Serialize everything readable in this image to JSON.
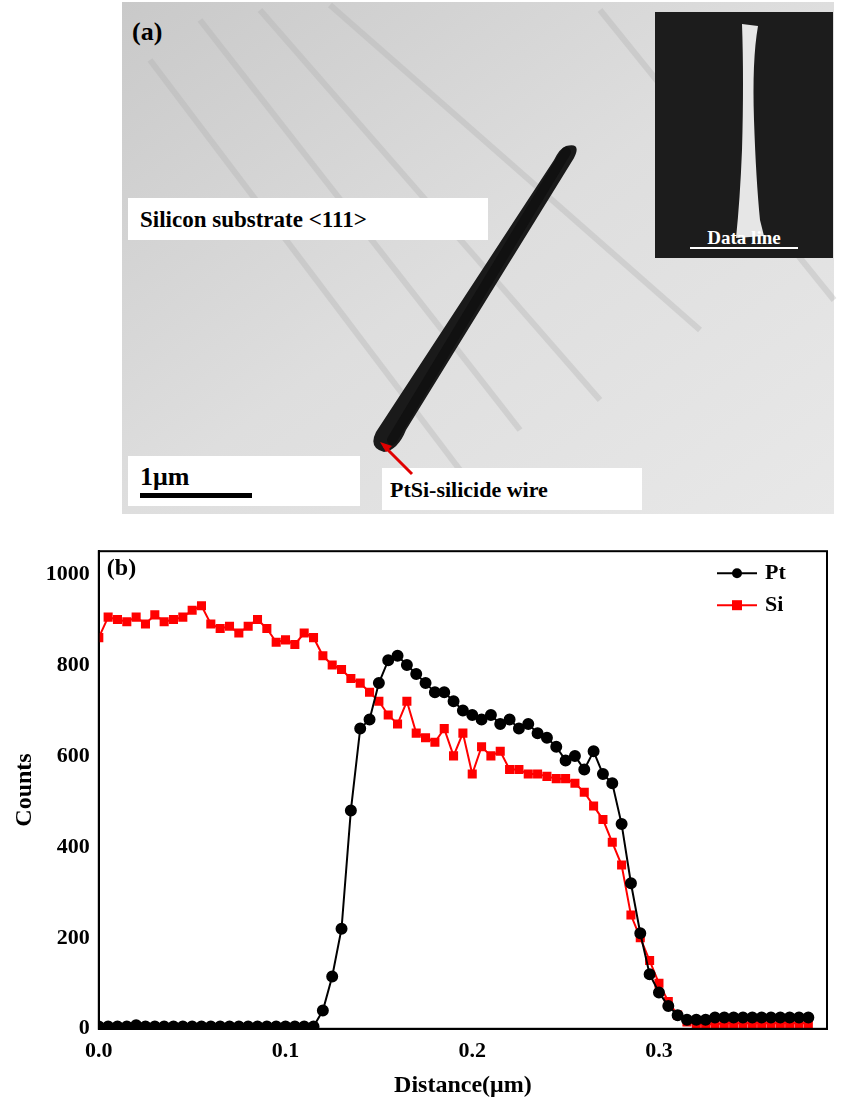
{
  "panel_a": {
    "label": "(a)",
    "substrate_label": "Silicon substrate <111>",
    "scale_bar": "1μm",
    "wire_label": "PtSi-silicide wire",
    "inset_label": "Data line"
  },
  "chart_data": {
    "type": "line",
    "panel_label": "(b)",
    "x_label": "Distance(μm)",
    "y_label": "Counts",
    "x": [
      0,
      0.005,
      0.01,
      0.015,
      0.02,
      0.025,
      0.03,
      0.035,
      0.04,
      0.045,
      0.05,
      0.055,
      0.06,
      0.065,
      0.07,
      0.075,
      0.08,
      0.085,
      0.09,
      0.095,
      0.1,
      0.105,
      0.11,
      0.115,
      0.12,
      0.125,
      0.13,
      0.135,
      0.14,
      0.145,
      0.15,
      0.155,
      0.16,
      0.165,
      0.17,
      0.175,
      0.18,
      0.185,
      0.19,
      0.195,
      0.2,
      0.205,
      0.21,
      0.215,
      0.22,
      0.225,
      0.23,
      0.235,
      0.24,
      0.245,
      0.25,
      0.255,
      0.26,
      0.265,
      0.27,
      0.275,
      0.28,
      0.285,
      0.29,
      0.295,
      0.3,
      0.305,
      0.31,
      0.315,
      0.32,
      0.325,
      0.33,
      0.335,
      0.34,
      0.345,
      0.35,
      0.355,
      0.36,
      0.365,
      0.37,
      0.375,
      0.38
    ],
    "series": [
      {
        "name": "Pt",
        "color": "#000000",
        "marker": "circle",
        "line_style": "solid",
        "values": [
          5,
          5,
          5,
          5,
          8,
          5,
          5,
          5,
          5,
          5,
          5,
          5,
          5,
          5,
          5,
          5,
          5,
          5,
          5,
          5,
          5,
          5,
          5,
          5,
          40,
          115,
          220,
          480,
          660,
          680,
          760,
          810,
          820,
          800,
          780,
          760,
          740,
          740,
          720,
          700,
          690,
          680,
          690,
          670,
          680,
          660,
          670,
          650,
          640,
          620,
          590,
          600,
          570,
          610,
          560,
          540,
          450,
          320,
          210,
          120,
          80,
          50,
          30,
          20,
          20,
          20,
          25,
          25,
          25,
          25,
          25,
          25,
          25,
          25,
          25,
          25,
          25
        ]
      },
      {
        "name": "Si",
        "color": "#ff0000",
        "marker": "square",
        "line_style": "solid",
        "values": [
          860,
          905,
          900,
          895,
          905,
          890,
          910,
          895,
          900,
          905,
          920,
          930,
          890,
          880,
          885,
          870,
          885,
          900,
          880,
          850,
          855,
          845,
          870,
          860,
          820,
          800,
          790,
          770,
          760,
          740,
          720,
          690,
          670,
          720,
          650,
          640,
          630,
          660,
          600,
          650,
          560,
          620,
          600,
          610,
          570,
          570,
          560,
          560,
          555,
          550,
          550,
          540,
          520,
          490,
          460,
          410,
          360,
          250,
          200,
          150,
          100,
          60,
          30,
          15,
          10,
          10,
          10,
          12,
          12,
          12,
          12,
          12,
          12,
          12,
          12,
          12,
          12
        ]
      }
    ],
    "xlim": [
      0,
      0.39
    ],
    "xticks": [
      {
        "value": 0,
        "label": "0.0"
      },
      {
        "value": 0.1,
        "label": "0.1"
      },
      {
        "value": 0.2,
        "label": "0.2"
      },
      {
        "value": 0.3,
        "label": "0.3"
      }
    ],
    "ylim": [
      0,
      1050
    ],
    "yticks": [
      0,
      200,
      400,
      600,
      800,
      1000
    ],
    "grid": false,
    "legend": "top-right"
  }
}
